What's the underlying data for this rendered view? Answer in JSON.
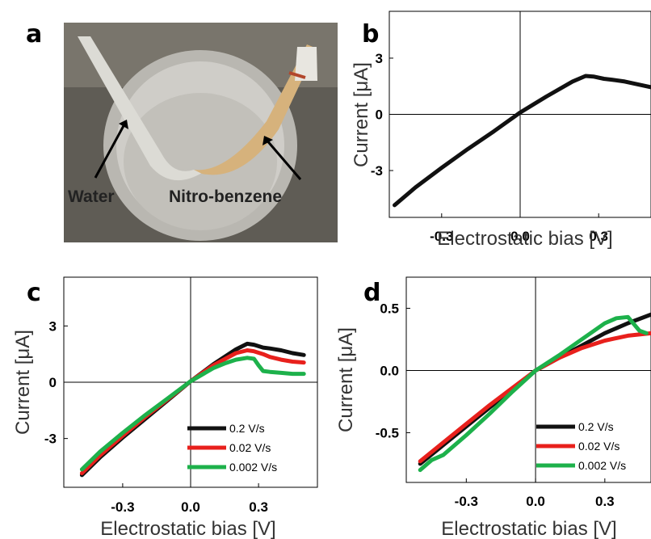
{
  "chart_data": [
    {
      "panel": "a",
      "type": "image",
      "labels": [
        "Water",
        "Nitro-benzene"
      ]
    },
    {
      "panel": "b",
      "type": "line",
      "xlabel": "Electrostatic bias [V]",
      "ylabel": "Current [μA]",
      "xticks": [
        "-0.3",
        "0.0",
        "0.3"
      ],
      "yticks": [
        "3",
        "0",
        "-3"
      ],
      "xlim": [
        -0.5,
        0.5
      ],
      "ylim": [
        -5.5,
        5.5
      ],
      "grid": false,
      "series": [
        {
          "color": "#111111",
          "x": [
            -0.48,
            -0.4,
            -0.3,
            -0.2,
            -0.1,
            0,
            0.1,
            0.2,
            0.25,
            0.28,
            0.32,
            0.35,
            0.4,
            0.45,
            0.5
          ],
          "values": [
            -4.85,
            -3.9,
            -2.85,
            -1.85,
            -0.9,
            0.1,
            0.95,
            1.75,
            2.05,
            2.02,
            1.9,
            1.85,
            1.75,
            1.6,
            1.45
          ]
        }
      ]
    },
    {
      "panel": "c",
      "type": "line",
      "xlabel": "Electrostatic bias [V]",
      "ylabel": "Current [μA]",
      "xticks": [
        "-0.3",
        "0.0",
        "0.3"
      ],
      "yticks": [
        "3",
        "0",
        "-3"
      ],
      "xlim": [
        -0.56,
        0.56
      ],
      "ylim": [
        -5.6,
        5.6
      ],
      "grid": false,
      "legend": "bottom-right",
      "series": [
        {
          "name": "0.2  V/s",
          "color": "#111111",
          "x": [
            -0.48,
            -0.4,
            -0.3,
            -0.2,
            -0.1,
            0,
            0.1,
            0.2,
            0.25,
            0.28,
            0.32,
            0.35,
            0.4,
            0.45,
            0.5
          ],
          "values": [
            -4.95,
            -4.0,
            -2.95,
            -1.95,
            -0.95,
            0.05,
            0.95,
            1.75,
            2.05,
            2.0,
            1.85,
            1.8,
            1.7,
            1.55,
            1.45
          ]
        },
        {
          "name": "0.02  V/s",
          "color": "#e8201c",
          "x": [
            -0.48,
            -0.4,
            -0.3,
            -0.2,
            -0.1,
            0,
            0.1,
            0.2,
            0.25,
            0.28,
            0.32,
            0.35,
            0.4,
            0.45,
            0.5
          ],
          "values": [
            -4.85,
            -3.9,
            -2.85,
            -1.85,
            -0.9,
            0.05,
            0.9,
            1.55,
            1.7,
            1.65,
            1.5,
            1.35,
            1.2,
            1.1,
            1.05
          ]
        },
        {
          "name": "0.002 V/s",
          "color": "#1db14b",
          "x": [
            -0.48,
            -0.4,
            -0.3,
            -0.2,
            -0.1,
            0,
            0.1,
            0.15,
            0.2,
            0.25,
            0.28,
            0.3,
            0.32,
            0.35,
            0.4,
            0.45,
            0.5
          ],
          "values": [
            -4.65,
            -3.7,
            -2.7,
            -1.75,
            -0.85,
            0.05,
            0.75,
            1.0,
            1.2,
            1.3,
            1.25,
            0.9,
            0.6,
            0.55,
            0.5,
            0.45,
            0.45
          ]
        }
      ]
    },
    {
      "panel": "d",
      "type": "line",
      "xlabel": "Electrostatic bias [V]",
      "ylabel": "Current [μA]",
      "xticks": [
        "-0.3",
        "0.0",
        "0.3"
      ],
      "yticks": [
        "0.5",
        "0.0",
        "-0.5"
      ],
      "xlim": [
        -0.56,
        0.5
      ],
      "ylim": [
        -0.9,
        0.75
      ],
      "grid": false,
      "legend": "bottom-right",
      "series": [
        {
          "name": "0.2  V/s",
          "color": "#111111",
          "x": [
            -0.5,
            -0.4,
            -0.3,
            -0.2,
            -0.1,
            0,
            0.1,
            0.2,
            0.3,
            0.4,
            0.5
          ],
          "values": [
            -0.75,
            -0.6,
            -0.45,
            -0.3,
            -0.15,
            0,
            0.1,
            0.2,
            0.3,
            0.38,
            0.45
          ]
        },
        {
          "name": "0.02  V/s",
          "color": "#e8201c",
          "x": [
            -0.5,
            -0.4,
            -0.3,
            -0.2,
            -0.1,
            0,
            0.1,
            0.2,
            0.3,
            0.4,
            0.5
          ],
          "values": [
            -0.73,
            -0.58,
            -0.43,
            -0.28,
            -0.14,
            0,
            0.1,
            0.18,
            0.24,
            0.28,
            0.3
          ]
        },
        {
          "name": "0.002 V/s",
          "color": "#1db14b",
          "x": [
            -0.5,
            -0.45,
            -0.4,
            -0.3,
            -0.2,
            -0.1,
            0,
            0.1,
            0.2,
            0.3,
            0.35,
            0.4,
            0.45,
            0.48
          ],
          "values": [
            -0.8,
            -0.72,
            -0.68,
            -0.52,
            -0.35,
            -0.17,
            0,
            0.12,
            0.25,
            0.38,
            0.42,
            0.43,
            0.32,
            0.3
          ]
        }
      ]
    }
  ]
}
